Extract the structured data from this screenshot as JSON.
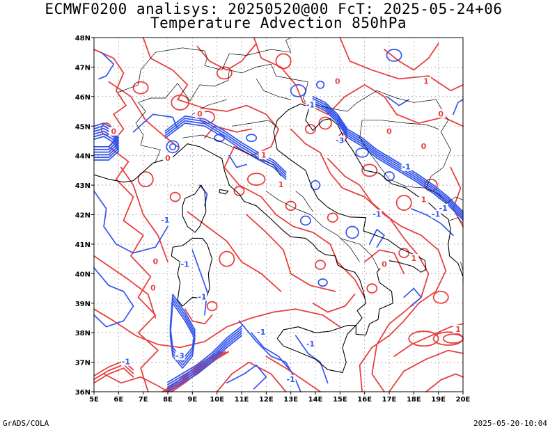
{
  "title_line1": "ECMWF0200 analisys: 20250520@00 FcT: 2025-05-24+06",
  "title_line2": "Temperature Advection 850hPa",
  "footer_left": "GrADS/COLA",
  "footer_right": "2025-05-20-10:04",
  "map": {
    "lat_labels": [
      "48N",
      "47N",
      "46N",
      "45N",
      "44N",
      "43N",
      "42N",
      "41N",
      "40N",
      "39N",
      "38N",
      "37N",
      "36N"
    ],
    "lon_labels": [
      "5E",
      "6E",
      "7E",
      "8E",
      "9E",
      "10E",
      "11E",
      "12E",
      "13E",
      "14E",
      "15E",
      "16E",
      "17E",
      "18E",
      "19E",
      "20E"
    ],
    "lat_range": [
      36,
      48
    ],
    "lon_range": [
      5,
      20
    ],
    "grid": "dotted",
    "colors": {
      "positive": "#e84040",
      "negative": "#3355ee",
      "coast": "#000000",
      "grid": "#888888"
    },
    "contour_labels": [
      {
        "text": "0",
        "lon": 5.8,
        "lat": 44.8,
        "sign": "pos"
      },
      {
        "text": "0",
        "lon": 9.3,
        "lat": 45.4,
        "sign": "pos"
      },
      {
        "text": "0",
        "lon": 8.0,
        "lat": 43.9,
        "sign": "pos"
      },
      {
        "text": "-1",
        "lon": 7.9,
        "lat": 41.8,
        "sign": "neg"
      },
      {
        "text": "-1",
        "lon": 8.7,
        "lat": 40.3,
        "sign": "neg"
      },
      {
        "text": "0",
        "lon": 7.5,
        "lat": 40.4,
        "sign": "pos"
      },
      {
        "text": "0",
        "lon": 7.4,
        "lat": 39.5,
        "sign": "pos"
      },
      {
        "text": "-1",
        "lon": 9.4,
        "lat": 39.2,
        "sign": "neg"
      },
      {
        "text": "-3",
        "lon": 8.5,
        "lat": 37.2,
        "sign": "neg"
      },
      {
        "text": "-1",
        "lon": 6.3,
        "lat": 37.0,
        "sign": "neg"
      },
      {
        "text": "-1",
        "lon": 11.8,
        "lat": 38.0,
        "sign": "neg"
      },
      {
        "text": "-1",
        "lon": 13.8,
        "lat": 37.6,
        "sign": "neg"
      },
      {
        "text": "-1",
        "lon": 13.0,
        "lat": 36.4,
        "sign": "neg"
      },
      {
        "text": "1",
        "lon": 11.9,
        "lat": 44.0,
        "sign": "pos"
      },
      {
        "text": "1",
        "lon": 12.6,
        "lat": 43.0,
        "sign": "pos"
      },
      {
        "text": "-1",
        "lon": 13.8,
        "lat": 45.7,
        "sign": "neg"
      },
      {
        "text": "-3",
        "lon": 15.0,
        "lat": 44.5,
        "sign": "neg"
      },
      {
        "text": "0",
        "lon": 17.0,
        "lat": 44.8,
        "sign": "pos"
      },
      {
        "text": "-1",
        "lon": 17.7,
        "lat": 43.6,
        "sign": "neg"
      },
      {
        "text": "0",
        "lon": 18.4,
        "lat": 44.3,
        "sign": "pos"
      },
      {
        "text": "-1",
        "lon": 16.5,
        "lat": 42.0,
        "sign": "neg"
      },
      {
        "text": "-1",
        "lon": 18.9,
        "lat": 42.0,
        "sign": "neg"
      },
      {
        "text": "1",
        "lon": 18.4,
        "lat": 42.5,
        "sign": "pos"
      },
      {
        "text": "1",
        "lon": 18.0,
        "lat": 40.5,
        "sign": "pos"
      },
      {
        "text": "1",
        "lon": 18.5,
        "lat": 46.5,
        "sign": "pos"
      },
      {
        "text": "1",
        "lon": 19.8,
        "lat": 38.1,
        "sign": "pos"
      },
      {
        "text": "0",
        "lon": 16.8,
        "lat": 40.3,
        "sign": "pos"
      },
      {
        "text": "0",
        "lon": 14.9,
        "lat": 46.5,
        "sign": "pos"
      },
      {
        "text": "0",
        "lon": 19.1,
        "lat": 45.4,
        "sign": "pos"
      },
      {
        "text": "-1",
        "lon": 19.2,
        "lat": 42.2,
        "sign": "neg"
      }
    ]
  }
}
